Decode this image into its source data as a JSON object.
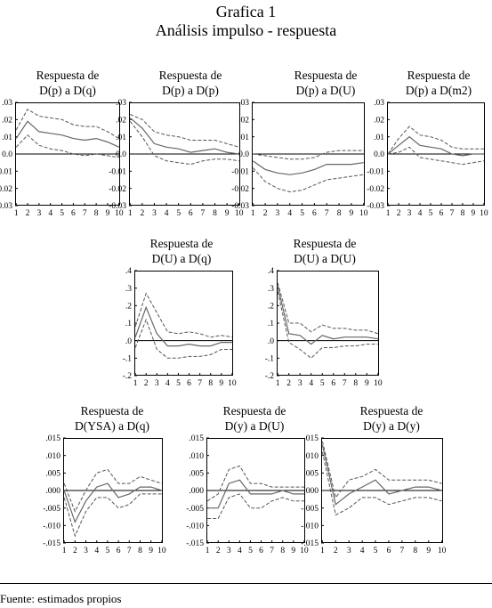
{
  "figure": {
    "title": "Grafica 1",
    "subtitle": "Análisis impulso - respuesta",
    "source_note": "Fuente: estimados propios"
  },
  "chart_data": [
    {
      "type": "line",
      "title_line1": "Respuesta de",
      "title_line2": "D(p) a D(q)",
      "x": [
        1,
        2,
        3,
        4,
        5,
        6,
        7,
        8,
        9,
        10
      ],
      "ylim": [
        -0.03,
        0.03
      ],
      "yticks": [
        ".03",
        ".02",
        ".01",
        "0.0",
        "-0.01",
        "-0.02",
        "-0.03"
      ],
      "ytick_values": [
        0.03,
        0.02,
        0.01,
        0.0,
        -0.01,
        -0.02,
        -0.03
      ],
      "xticks": [
        "1",
        "2",
        "3",
        "4",
        "5",
        "6",
        "7",
        "8",
        "9",
        "10"
      ],
      "series": [
        {
          "role": "upper",
          "values": [
            0.014,
            0.026,
            0.022,
            0.021,
            0.02,
            0.017,
            0.016,
            0.016,
            0.013,
            0.009
          ]
        },
        {
          "role": "response",
          "values": [
            0.009,
            0.019,
            0.013,
            0.012,
            0.011,
            0.009,
            0.008,
            0.009,
            0.007,
            0.004
          ]
        },
        {
          "role": "lower",
          "values": [
            0.004,
            0.011,
            0.005,
            0.003,
            0.002,
            0.0,
            -0.001,
            0.0,
            -0.001,
            -0.002
          ]
        }
      ]
    },
    {
      "type": "line",
      "title_line1": "Respuesta de",
      "title_line2": "D(p) a D(p)",
      "x": [
        1,
        2,
        3,
        4,
        5,
        6,
        7,
        8,
        9,
        10
      ],
      "ylim": [
        -0.03,
        0.03
      ],
      "yticks": [
        ".03",
        ".02",
        ".01",
        "0.0",
        "-0.01",
        "-0.02",
        "-0.03"
      ],
      "ytick_values": [
        0.03,
        0.02,
        0.01,
        0.0,
        -0.01,
        -0.02,
        -0.03
      ],
      "xticks": [
        "1",
        "2",
        "3",
        "4",
        "5",
        "6",
        "7",
        "8",
        "9",
        "10"
      ],
      "series": [
        {
          "role": "upper",
          "values": [
            0.023,
            0.02,
            0.013,
            0.011,
            0.01,
            0.008,
            0.008,
            0.008,
            0.006,
            0.004
          ]
        },
        {
          "role": "response",
          "values": [
            0.021,
            0.015,
            0.006,
            0.004,
            0.003,
            0.001,
            0.002,
            0.003,
            0.001,
            0.0
          ]
        },
        {
          "role": "lower",
          "values": [
            0.019,
            0.01,
            -0.001,
            -0.004,
            -0.005,
            -0.006,
            -0.004,
            -0.003,
            -0.003,
            -0.004
          ]
        }
      ]
    },
    {
      "type": "line",
      "title_line1": "Respuesta de",
      "title_line2": "D(p) a D(U)",
      "x": [
        1,
        2,
        3,
        4,
        5,
        6,
        7,
        8,
        9,
        10
      ],
      "ylim": [
        -0.03,
        0.03
      ],
      "yticks": [
        ".03",
        ".02",
        ".01",
        "0.0",
        "-0.01",
        "-0.02",
        "-0.03"
      ],
      "ytick_values": [
        0.03,
        0.02,
        0.01,
        0.0,
        -0.01,
        -0.02,
        -0.03
      ],
      "xticks": [
        "1",
        "2",
        "3",
        "4",
        "5",
        "6",
        "7",
        "8",
        "9",
        "10"
      ],
      "series": [
        {
          "role": "upper",
          "values": [
            0.0,
            -0.001,
            -0.002,
            -0.003,
            -0.003,
            -0.002,
            0.001,
            0.002,
            0.002,
            0.002
          ]
        },
        {
          "role": "response",
          "values": [
            -0.004,
            -0.009,
            -0.011,
            -0.012,
            -0.011,
            -0.009,
            -0.006,
            -0.006,
            -0.006,
            -0.005
          ]
        },
        {
          "role": "lower",
          "values": [
            -0.008,
            -0.016,
            -0.02,
            -0.022,
            -0.021,
            -0.018,
            -0.015,
            -0.014,
            -0.013,
            -0.012
          ]
        }
      ]
    },
    {
      "type": "line",
      "title_line1": "Respuesta de",
      "title_line2": "D(p) a D(m2)",
      "x": [
        1,
        2,
        3,
        4,
        5,
        6,
        7,
        8,
        9,
        10
      ],
      "ylim": [
        -0.03,
        0.03
      ],
      "yticks": [
        ".03",
        ".02",
        ".01",
        "0.0",
        "-0.01",
        "-0.02",
        "-0.03"
      ],
      "ytick_values": [
        0.03,
        0.02,
        0.01,
        0.0,
        -0.01,
        -0.02,
        -0.03
      ],
      "xticks": [
        "1",
        "2",
        "3",
        "4",
        "5",
        "6",
        "7",
        "8",
        "9",
        "10"
      ],
      "series": [
        {
          "role": "upper",
          "values": [
            0.0,
            0.009,
            0.016,
            0.011,
            0.01,
            0.008,
            0.004,
            0.003,
            0.003,
            0.003
          ]
        },
        {
          "role": "response",
          "values": [
            0.0,
            0.005,
            0.01,
            0.005,
            0.004,
            0.003,
            0.0,
            -0.001,
            0.0,
            0.0
          ]
        },
        {
          "role": "lower",
          "values": [
            0.0,
            0.001,
            0.004,
            -0.002,
            -0.003,
            -0.004,
            -0.005,
            -0.006,
            -0.005,
            -0.004
          ]
        }
      ]
    },
    {
      "type": "line",
      "title_line1": "Respuesta de",
      "title_line2": "D(U) a D(q)",
      "x": [
        1,
        2,
        3,
        4,
        5,
        6,
        7,
        8,
        9,
        10
      ],
      "ylim": [
        -0.2,
        0.4
      ],
      "yticks": [
        ".4",
        ".3",
        ".2",
        ".1",
        ".0",
        "-.1",
        "-.2"
      ],
      "ytick_values": [
        0.4,
        0.3,
        0.2,
        0.1,
        0.0,
        -0.1,
        -0.2
      ],
      "xticks": [
        "1",
        "2",
        "3",
        "4",
        "5",
        "6",
        "7",
        "8",
        "9",
        "10"
      ],
      "series": [
        {
          "role": "upper",
          "values": [
            0.08,
            0.27,
            0.16,
            0.05,
            0.04,
            0.05,
            0.04,
            0.02,
            0.03,
            0.02
          ]
        },
        {
          "role": "response",
          "values": [
            0.02,
            0.19,
            0.04,
            -0.03,
            -0.03,
            -0.02,
            -0.03,
            -0.03,
            -0.01,
            -0.01
          ]
        },
        {
          "role": "lower",
          "values": [
            -0.04,
            0.12,
            -0.05,
            -0.1,
            -0.1,
            -0.09,
            -0.09,
            -0.08,
            -0.05,
            -0.05
          ]
        }
      ]
    },
    {
      "type": "line",
      "title_line1": "Respuesta de",
      "title_line2": "D(U) a D(U)",
      "x": [
        1,
        2,
        3,
        4,
        5,
        6,
        7,
        8,
        9,
        10
      ],
      "ylim": [
        -0.2,
        0.4
      ],
      "yticks": [
        ".4",
        ".3",
        ".2",
        ".1",
        ".0",
        "-.1",
        "-.2"
      ],
      "ytick_values": [
        0.4,
        0.3,
        0.2,
        0.1,
        0.0,
        -0.1,
        -0.2
      ],
      "xticks": [
        "1",
        "2",
        "3",
        "4",
        "5",
        "6",
        "7",
        "8",
        "9",
        "10"
      ],
      "series": [
        {
          "role": "upper",
          "values": [
            0.33,
            0.1,
            0.1,
            0.05,
            0.09,
            0.07,
            0.07,
            0.06,
            0.06,
            0.04
          ]
        },
        {
          "role": "response",
          "values": [
            0.31,
            0.04,
            0.03,
            -0.02,
            0.03,
            0.01,
            0.02,
            0.02,
            0.02,
            0.01
          ]
        },
        {
          "role": "lower",
          "values": [
            0.28,
            -0.01,
            -0.05,
            -0.1,
            -0.04,
            -0.04,
            -0.03,
            -0.03,
            -0.02,
            -0.02
          ]
        }
      ]
    },
    {
      "type": "line",
      "title_line1": "Respuesta de",
      "title_line2": "D(YSA) a D(q)",
      "x": [
        1,
        2,
        3,
        4,
        5,
        6,
        7,
        8,
        9,
        10
      ],
      "ylim": [
        -0.015,
        0.015
      ],
      "yticks": [
        ".015",
        ".010",
        ".005",
        ".000",
        "-.005",
        "-.010",
        "-.015"
      ],
      "ytick_values": [
        0.015,
        0.01,
        0.005,
        0.0,
        -0.005,
        -0.01,
        -0.015
      ],
      "xticks": [
        "1",
        "2",
        "3",
        "4",
        "5",
        "6",
        "7",
        "8",
        "9",
        "10"
      ],
      "series": [
        {
          "role": "upper",
          "values": [
            0.002,
            -0.006,
            0.0,
            0.005,
            0.006,
            0.002,
            0.002,
            0.004,
            0.003,
            0.002
          ]
        },
        {
          "role": "response",
          "values": [
            0.0,
            -0.009,
            -0.003,
            0.001,
            0.002,
            -0.002,
            -0.001,
            0.001,
            0.001,
            0.0
          ]
        },
        {
          "role": "lower",
          "values": [
            -0.002,
            -0.013,
            -0.006,
            -0.002,
            -0.002,
            -0.005,
            -0.004,
            -0.001,
            -0.001,
            -0.001
          ]
        }
      ]
    },
    {
      "type": "line",
      "title_line1": "Respuesta de",
      "title_line2": "D(y) a D(U)",
      "x": [
        1,
        2,
        3,
        4,
        5,
        6,
        7,
        8,
        9,
        10
      ],
      "ylim": [
        -0.015,
        0.015
      ],
      "yticks": [
        ".015",
        ".010",
        ".005",
        ".000",
        "-.005",
        "-.010",
        "-.015"
      ],
      "ytick_values": [
        0.015,
        0.01,
        0.005,
        0.0,
        -0.005,
        -0.01,
        -0.015
      ],
      "xticks": [
        "1",
        "2",
        "3",
        "4",
        "5",
        "6",
        "7",
        "8",
        "9",
        "10"
      ],
      "series": [
        {
          "role": "upper",
          "values": [
            -0.003,
            -0.001,
            0.006,
            0.007,
            0.002,
            0.002,
            0.001,
            0.001,
            0.001,
            0.001
          ]
        },
        {
          "role": "response",
          "values": [
            -0.005,
            -0.005,
            0.002,
            0.003,
            -0.001,
            -0.001,
            -0.001,
            0.0,
            -0.001,
            -0.001
          ]
        },
        {
          "role": "lower",
          "values": [
            -0.008,
            -0.008,
            -0.002,
            -0.001,
            -0.005,
            -0.005,
            -0.003,
            -0.002,
            -0.003,
            -0.003
          ]
        }
      ]
    },
    {
      "type": "line",
      "title_line1": "Respuesta de",
      "title_line2": "D(y) a D(y)",
      "x": [
        1,
        2,
        3,
        4,
        5,
        6,
        7,
        8,
        9,
        10
      ],
      "ylim": [
        -0.015,
        0.015
      ],
      "yticks": [
        ".015",
        ".010",
        ".005",
        ".000",
        "-.005",
        "-.010",
        "-.015"
      ],
      "ytick_values": [
        0.015,
        0.01,
        0.005,
        0.0,
        -0.005,
        -0.01,
        -0.015
      ],
      "xticks": [
        "1",
        "2",
        "3",
        "4",
        "5",
        "6",
        "7",
        "8",
        "9",
        "10"
      ],
      "series": [
        {
          "role": "upper",
          "values": [
            0.014,
            -0.002,
            0.003,
            0.004,
            0.006,
            0.003,
            0.003,
            0.003,
            0.003,
            0.002
          ]
        },
        {
          "role": "response",
          "values": [
            0.013,
            -0.004,
            -0.001,
            0.001,
            0.003,
            -0.001,
            0.0,
            0.001,
            0.001,
            0.0
          ]
        },
        {
          "role": "lower",
          "values": [
            0.011,
            -0.007,
            -0.005,
            -0.002,
            -0.002,
            -0.004,
            -0.003,
            -0.002,
            -0.002,
            -0.003
          ]
        }
      ]
    }
  ]
}
